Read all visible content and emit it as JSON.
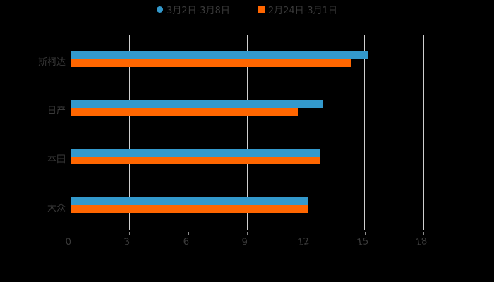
{
  "legend": {
    "series1": "3月2日-3月8日",
    "series2": "2月24日-3月1日"
  },
  "colors": {
    "series1": "#3399CC",
    "series2": "#FF6600",
    "background": "#000000",
    "text": "#3a3a3a"
  },
  "axis": {
    "ticks": [
      "0",
      "3",
      "6",
      "9",
      "12",
      "15",
      "18"
    ]
  },
  "categories": [
    "斯柯达",
    "日产",
    "本田",
    "大众"
  ],
  "chart_data": {
    "type": "bar",
    "orientation": "horizontal",
    "title": "",
    "xlabel": "",
    "ylabel": "",
    "categories": [
      "斯柯达",
      "日产",
      "本田",
      "大众"
    ],
    "series": [
      {
        "name": "3月2日-3月8日",
        "color": "#3399CC",
        "values": [
          15.2,
          12.9,
          12.7,
          12.1
        ]
      },
      {
        "name": "2月24日-3月1日",
        "color": "#FF6600",
        "values": [
          14.3,
          11.6,
          12.7,
          12.1
        ]
      }
    ],
    "xlim": [
      0,
      18
    ],
    "xticks": [
      0,
      3,
      6,
      9,
      12,
      15,
      18
    ],
    "grid": "vertical",
    "legend_position": "top"
  }
}
